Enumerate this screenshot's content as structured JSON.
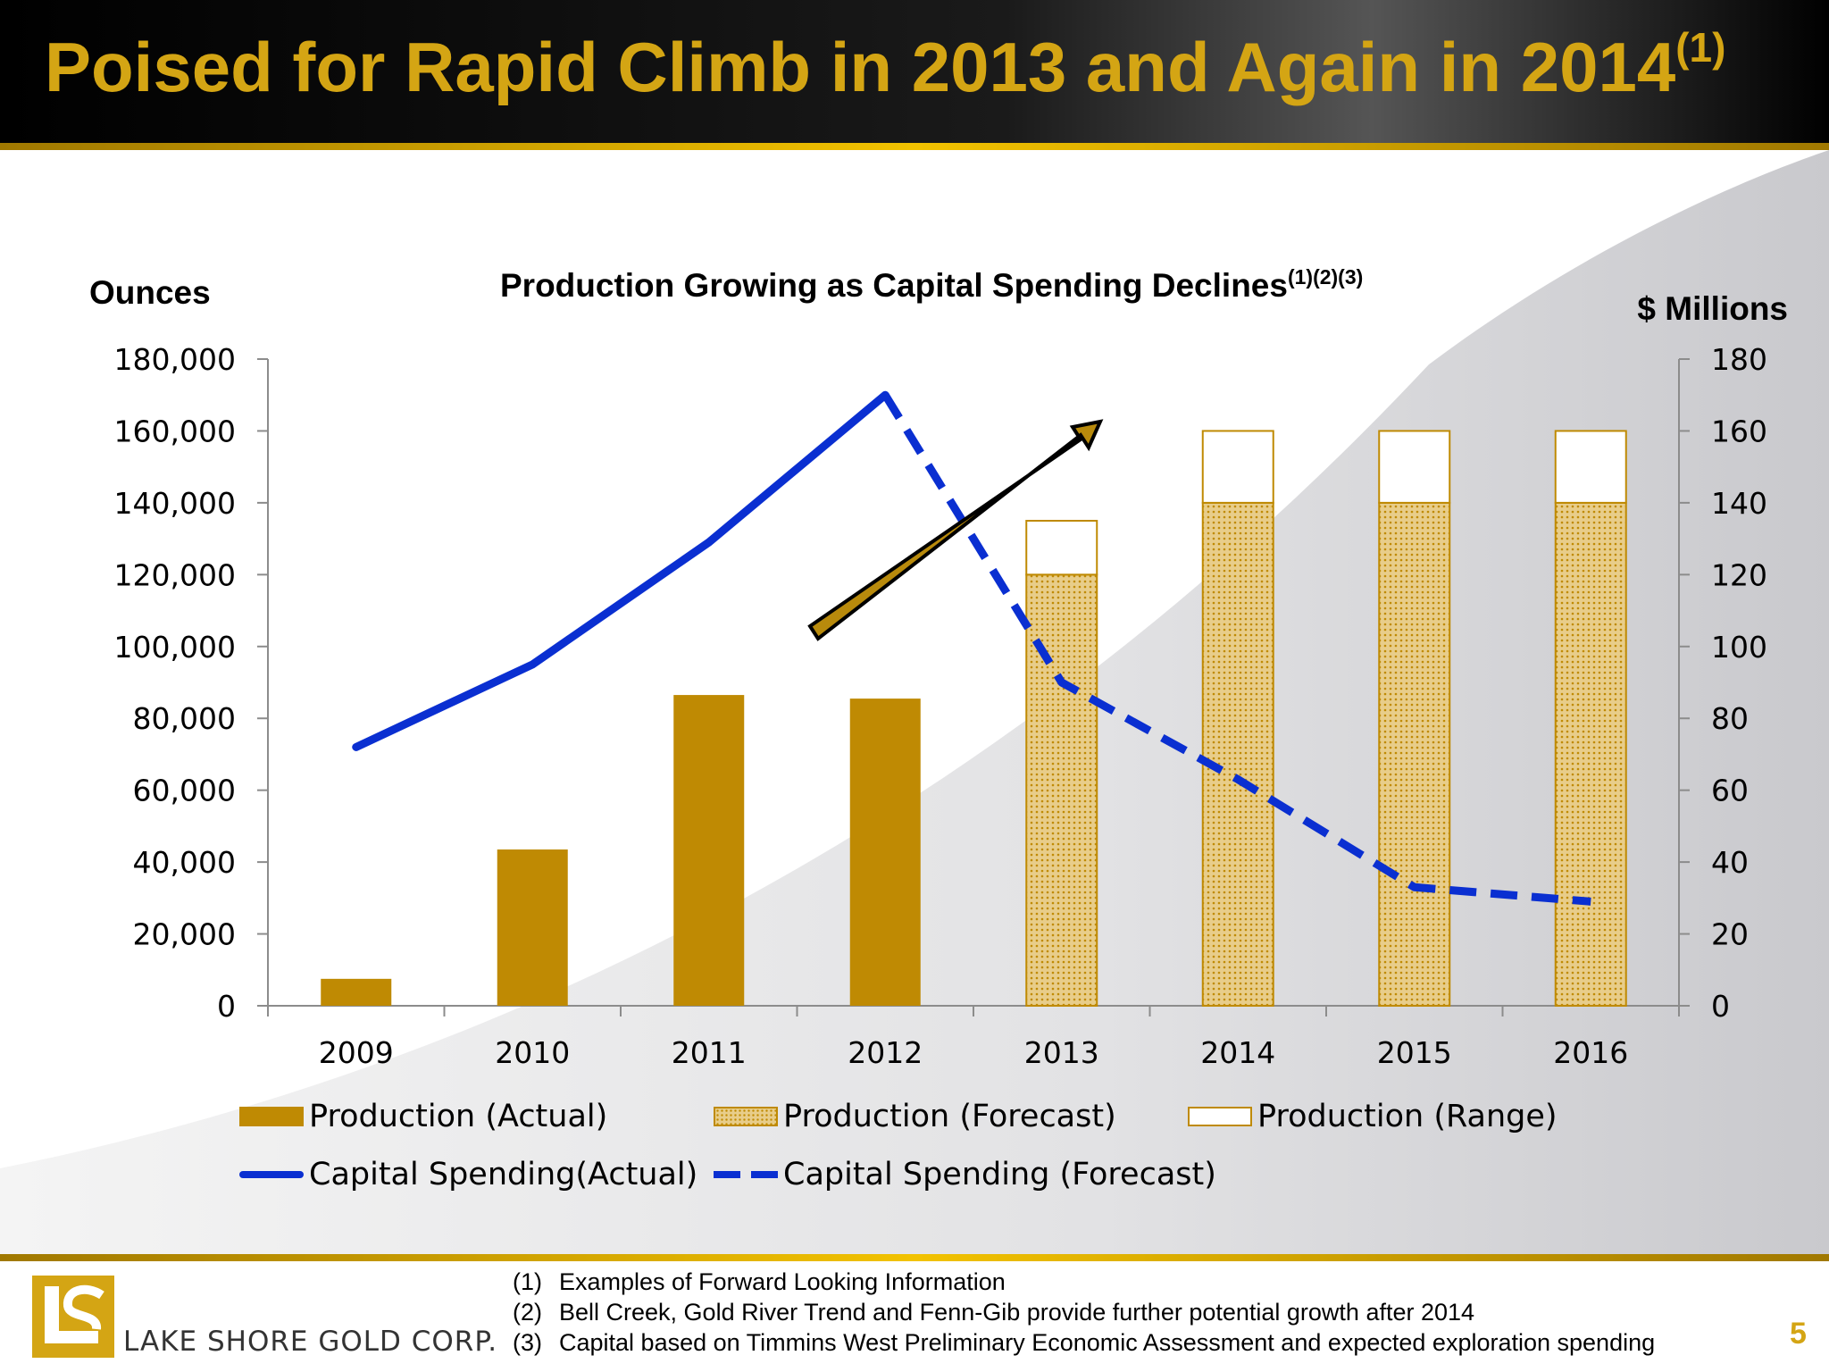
{
  "slide": {
    "title": "Poised for Rapid Climb in 2013 and Again in 2014",
    "title_superscript": "(1)",
    "page_number": "5"
  },
  "logo": {
    "text": "LAKE SHORE GOLD CORP."
  },
  "footnotes": [
    {
      "num": "(1)",
      "text": "Examples of Forward Looking Information"
    },
    {
      "num": "(2)",
      "text": "Bell Creek, Gold River Trend and Fenn-Gib provide further potential growth after 2014"
    },
    {
      "num": "(3)",
      "text": "Capital based on Timmins West Preliminary Economic Assessment and expected  exploration spending"
    }
  ],
  "colors": {
    "accent_gold": "#d4a514",
    "bar_gold": "#bf8a03",
    "line_blue": "#0a2fd1"
  },
  "chart_data": {
    "type": "bar",
    "title": "Production Growing as Capital Spending Declines",
    "title_superscript": "(1)(2)(3)",
    "ylabel_left": "Ounces",
    "ylabel_right": "$ Millions",
    "categories": [
      "2009",
      "2010",
      "2011",
      "2012",
      "2013",
      "2014",
      "2015",
      "2016"
    ],
    "ylim_left": [
      0,
      180000
    ],
    "ylim_right": [
      0,
      180
    ],
    "left_ticks": [
      "0",
      "20,000",
      "40,000",
      "60,000",
      "80,000",
      "100,000",
      "120,000",
      "140,000",
      "160,000",
      "180,000"
    ],
    "right_ticks": [
      "0",
      "20",
      "40",
      "60",
      "80",
      "100",
      "120",
      "140",
      "160",
      "180"
    ],
    "grid": false,
    "legend_position": "bottom",
    "series": [
      {
        "name": "Production (Actual)",
        "type": "bar",
        "axis": "left",
        "values": [
          7500,
          43500,
          86500,
          85500,
          null,
          null,
          null,
          null
        ]
      },
      {
        "name": "Production (Forecast)",
        "type": "bar",
        "axis": "left",
        "pattern": "dotted",
        "values": [
          null,
          null,
          null,
          null,
          120000,
          140000,
          140000,
          140000
        ]
      },
      {
        "name": "Production (Range)",
        "type": "bar",
        "stacked_on": "Production (Forecast)",
        "axis": "left",
        "values": [
          null,
          null,
          null,
          null,
          15000,
          20000,
          20000,
          20000
        ]
      },
      {
        "name": "Capital Spending(Actual)",
        "type": "line",
        "axis": "right",
        "values": [
          72,
          95,
          129,
          170,
          null,
          null,
          null,
          null
        ]
      },
      {
        "name": "Capital Spending (Forecast)",
        "type": "line",
        "style": "dashed",
        "axis": "right",
        "values": [
          null,
          null,
          null,
          170,
          90,
          63,
          33,
          29
        ]
      }
    ],
    "annotation": "upward arrow (gold)"
  }
}
